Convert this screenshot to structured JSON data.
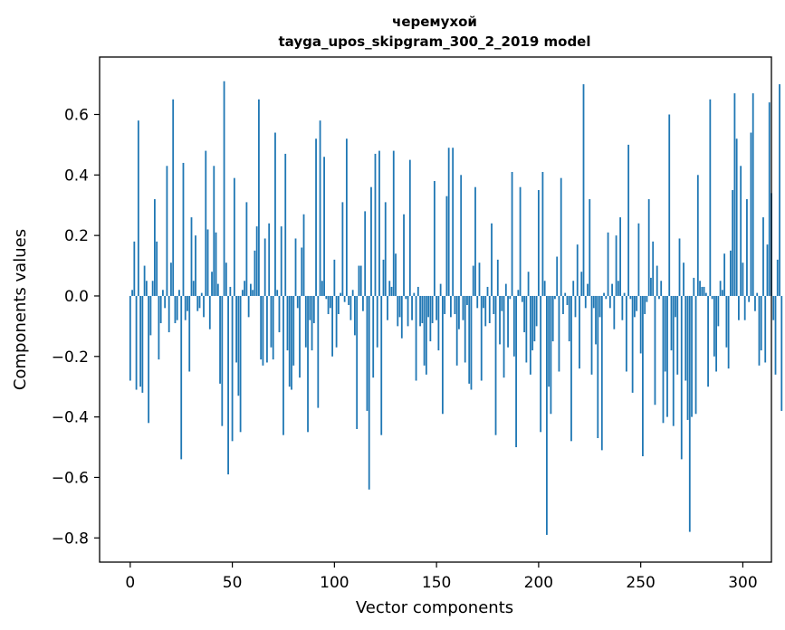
{
  "chart_data": {
    "type": "bar",
    "title": "черемухой",
    "subtitle": "tayga_upos_skipgram_300_2_2019 model",
    "xlabel": "Vector components",
    "ylabel": "Components values",
    "xlim": [
      -15,
      314
    ],
    "ylim": [
      -0.88,
      0.79
    ],
    "xticks": [
      0,
      50,
      100,
      150,
      200,
      250,
      300
    ],
    "xtick_labels": [
      "0",
      "50",
      "100",
      "150",
      "200",
      "250",
      "300"
    ],
    "yticks": [
      -0.8,
      -0.6,
      -0.4,
      -0.2,
      0.0,
      0.2,
      0.4,
      0.6
    ],
    "ytick_labels": [
      "−0.8",
      "−0.6",
      "−0.4",
      "−0.2",
      "0.0",
      "0.2",
      "0.4",
      "0.6"
    ],
    "grid": false,
    "bar_color": "#1f77b4",
    "values": [
      -0.28,
      0.02,
      0.18,
      -0.31,
      0.58,
      -0.3,
      -0.32,
      0.1,
      0.05,
      -0.42,
      -0.13,
      0.05,
      0.32,
      0.18,
      -0.21,
      -0.09,
      0.02,
      -0.04,
      0.43,
      -0.12,
      0.11,
      0.65,
      -0.09,
      -0.08,
      0.02,
      -0.54,
      0.44,
      -0.08,
      -0.05,
      -0.25,
      0.26,
      0.05,
      0.2,
      -0.05,
      -0.04,
      0.01,
      -0.07,
      0.48,
      0.22,
      -0.11,
      0.08,
      0.43,
      0.21,
      0.04,
      -0.29,
      -0.43,
      0.71,
      0.11,
      -0.59,
      0.03,
      -0.48,
      0.39,
      -0.22,
      -0.33,
      -0.45,
      0.02,
      0.05,
      0.31,
      -0.07,
      0.04,
      0.02,
      0.15,
      0.23,
      0.65,
      -0.21,
      -0.23,
      0.19,
      -0.22,
      0.24,
      -0.17,
      -0.21,
      0.54,
      0.02,
      -0.12,
      0.23,
      -0.46,
      0.47,
      -0.18,
      -0.3,
      -0.31,
      -0.23,
      0.19,
      -0.04,
      -0.27,
      0.16,
      0.27,
      -0.17,
      -0.45,
      -0.08,
      -0.18,
      -0.09,
      0.52,
      -0.37,
      0.58,
      0.05,
      0.46,
      -0.01,
      -0.06,
      -0.04,
      -0.2,
      0.12,
      -0.17,
      -0.06,
      0.01,
      0.31,
      -0.02,
      0.52,
      -0.03,
      -0.08,
      0.02,
      -0.13,
      -0.44,
      0.1,
      0.1,
      -0.05,
      0.28,
      -0.38,
      -0.64,
      0.36,
      -0.27,
      0.47,
      -0.17,
      0.48,
      -0.46,
      0.12,
      0.31,
      -0.08,
      0.05,
      0.03,
      0.48,
      0.14,
      -0.1,
      -0.07,
      -0.14,
      0.27,
      -0.01,
      -0.1,
      0.45,
      -0.08,
      0.01,
      -0.28,
      0.03,
      -0.1,
      -0.09,
      -0.23,
      -0.26,
      -0.07,
      -0.15,
      -0.09,
      0.38,
      -0.08,
      -0.18,
      0.04,
      -0.39,
      -0.06,
      0.33,
      0.49,
      -0.07,
      0.49,
      -0.06,
      -0.23,
      -0.11,
      0.4,
      -0.08,
      -0.22,
      -0.03,
      -0.29,
      -0.31,
      0.1,
      0.36,
      -0.04,
      0.11,
      -0.28,
      -0.04,
      -0.1,
      0.03,
      -0.09,
      0.24,
      -0.06,
      -0.46,
      0.12,
      -0.16,
      -0.05,
      -0.27,
      0.04,
      -0.17,
      -0.01,
      0.41,
      -0.2,
      -0.5,
      0.02,
      0.36,
      -0.02,
      -0.12,
      -0.22,
      0.08,
      -0.26,
      -0.18,
      -0.15,
      -0.1,
      0.35,
      -0.45,
      0.41,
      0.05,
      -0.79,
      -0.3,
      -0.39,
      -0.15,
      -0.01,
      0.13,
      -0.25,
      0.39,
      -0.06,
      0.01,
      -0.03,
      -0.15,
      -0.48,
      0.05,
      -0.07,
      0.17,
      -0.24,
      0.08,
      0.7,
      -0.04,
      0.04,
      0.32,
      -0.26,
      -0.04,
      -0.16,
      -0.47,
      -0.07,
      -0.51,
      0.01,
      -0.01,
      0.21,
      -0.04,
      0.04,
      -0.11,
      0.2,
      0.05,
      0.26,
      -0.08,
      0.01,
      -0.25,
      0.5,
      -0.01,
      -0.32,
      -0.07,
      -0.05,
      0.24,
      -0.19,
      -0.53,
      -0.06,
      -0.02,
      0.32,
      0.06,
      0.18,
      -0.36,
      0.1,
      -0.01,
      0.05,
      -0.42,
      -0.25,
      -0.4,
      0.6,
      -0.18,
      -0.43,
      -0.07,
      -0.26,
      0.19,
      -0.54,
      0.11,
      -0.28,
      -0.41,
      -0.78,
      -0.4,
      0.06,
      -0.39,
      0.4,
      0.05,
      0.03,
      0.03,
      0.01,
      -0.3,
      0.65,
      -0.01,
      -0.2,
      -0.25,
      -0.1,
      0.05,
      0.02,
      0.14,
      -0.17,
      -0.24,
      0.15,
      0.35,
      0.67,
      0.52,
      -0.08,
      0.43,
      0.11,
      -0.08,
      0.32,
      -0.02,
      0.54,
      0.67,
      -0.05,
      0.01,
      -0.23,
      -0.18,
      0.26,
      -0.22,
      0.17,
      0.64,
      0.34,
      -0.08,
      -0.26,
      0.12,
      0.7,
      -0.38
    ]
  }
}
